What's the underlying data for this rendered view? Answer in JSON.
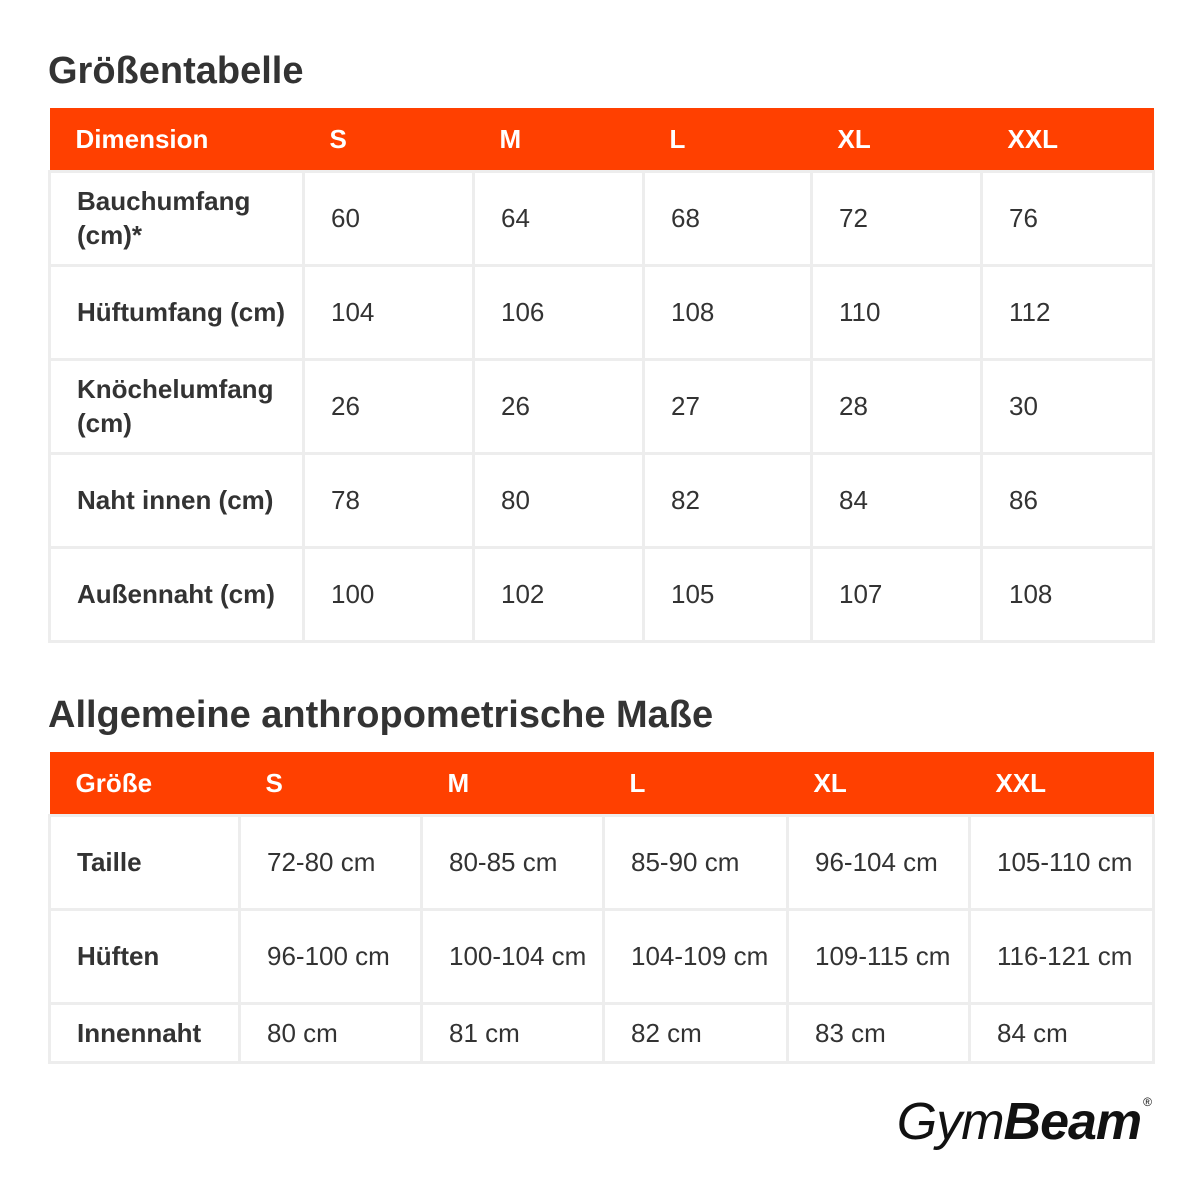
{
  "size_table": {
    "title": "Größentabelle",
    "headers": [
      "Dimension",
      "S",
      "M",
      "L",
      "XL",
      "XXL"
    ],
    "rows": [
      {
        "label": "Bauchumfang (cm)*",
        "values": [
          "60",
          "64",
          "68",
          "72",
          "76"
        ]
      },
      {
        "label": "Hüftumfang (cm)",
        "values": [
          "104",
          "106",
          "108",
          "110",
          "112"
        ]
      },
      {
        "label": "Knöchelumfang (cm)",
        "values": [
          "26",
          "26",
          "27",
          "28",
          "30"
        ]
      },
      {
        "label": "Naht innen (cm)",
        "values": [
          "78",
          "80",
          "82",
          "84",
          "86"
        ]
      },
      {
        "label": "Außennaht (cm)",
        "values": [
          "100",
          "102",
          "105",
          "107",
          "108"
        ]
      }
    ]
  },
  "anthropometric_table": {
    "title": "Allgemeine anthropometrische Maße",
    "headers": [
      "Größe",
      "S",
      "M",
      "L",
      "XL",
      "XXL"
    ],
    "rows": [
      {
        "label": "Taille",
        "values": [
          "72-80 cm",
          "80-85 cm",
          "85-90 cm",
          "96-104 cm",
          "105-110 cm"
        ]
      },
      {
        "label": "Hüften",
        "values": [
          "96-100 cm",
          "100-104 cm",
          "104-109 cm",
          "109-115 cm",
          "116-121 cm"
        ]
      },
      {
        "label": "Innennaht",
        "values": [
          "80 cm",
          "81 cm",
          "82 cm",
          "83 cm",
          "84 cm"
        ]
      }
    ]
  },
  "brand": {
    "logo_part1": "Gym",
    "logo_part2": "Beam",
    "registered_mark": "®"
  },
  "colors": {
    "header_bg": "#ff4000",
    "header_text": "#ffffff",
    "cell_border": "#ededed",
    "text": "#333333"
  }
}
